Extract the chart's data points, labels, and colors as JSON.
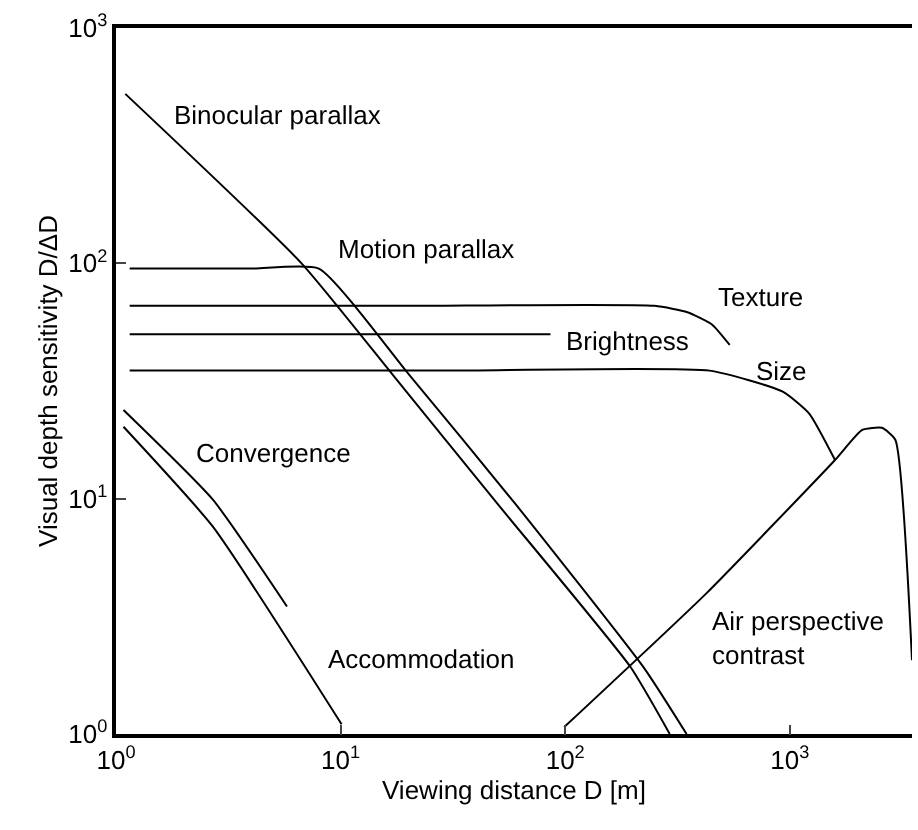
{
  "chart_data": {
    "type": "line",
    "xlabel": "Viewing distance D [m]",
    "ylabel": "Visual depth sensitivity D/ΔD",
    "log": "xy",
    "grid": false,
    "legend": false,
    "marker": "none",
    "line_style": "solid",
    "xlim": [
      1,
      3500
    ],
    "ylim": [
      1,
      1000
    ],
    "xticks": [
      {
        "value": 1,
        "label": "10$^{0}$"
      },
      {
        "value": 10,
        "label": "10$^{1}$"
      },
      {
        "value": 100,
        "label": "10$^{2}$"
      },
      {
        "value": 1000,
        "label": "10$^{3}$"
      }
    ],
    "yticks": [
      {
        "value": 1,
        "label": "10$^{0}$"
      },
      {
        "value": 10,
        "label": "10$^{1}$"
      },
      {
        "value": 100,
        "label": "10$^{2}$"
      },
      {
        "value": 1000,
        "label": "10$^{3}$"
      }
    ],
    "series": [
      {
        "name": "Binocular parallax",
        "color": "#000000",
        "x": [
          1.1,
          6.7,
          16.9,
          50,
          195,
          292
        ],
        "values": [
          525,
          100,
          34,
          9.5,
          1.93,
          1
        ]
      },
      {
        "name": "Motion parallax",
        "color": "#000000",
        "x": [
          1.15,
          4,
          8,
          20,
          60,
          225,
          347
        ],
        "values": [
          95,
          95,
          95,
          34,
          9.5,
          1.9,
          1
        ]
      },
      {
        "name": "Texture",
        "color": "#000000",
        "x": [
          1.15,
          20,
          250,
          350,
          450,
          540
        ],
        "values": [
          66,
          66,
          66,
          62,
          55,
          45
        ]
      },
      {
        "name": "Brightness",
        "color": "#000000",
        "x": [
          1.15,
          86
        ],
        "values": [
          50,
          50
        ]
      },
      {
        "name": "Size",
        "color": "#000000",
        "x": [
          1.15,
          30,
          440,
          930,
          1220,
          1590
        ],
        "values": [
          35,
          35,
          35,
          28.5,
          23,
          14.6
        ]
      },
      {
        "name": "Air perspective\ncontrast",
        "color": "#000000",
        "x": [
          99,
          425,
          1590,
          2100,
          2570,
          2950,
          3500
        ],
        "values": [
          1.07,
          3.96,
          14.6,
          19.6,
          20,
          17.8,
          2.06
        ]
      },
      {
        "name": "Convergence",
        "color": "#000000",
        "x": [
          1.08,
          2.7,
          5.77
        ],
        "values": [
          23.8,
          9.9,
          3.48
        ]
      },
      {
        "name": "Accommodation",
        "color": "#000000",
        "x": [
          1.08,
          2.7,
          10.1
        ],
        "values": [
          20.2,
          7.6,
          1.1
        ]
      }
    ]
  }
}
